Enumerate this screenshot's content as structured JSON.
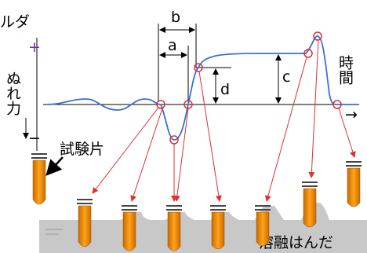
{
  "header": {
    "title": "ルダ"
  },
  "labels": {
    "a": "a",
    "b": "b",
    "c": "c",
    "d": "d"
  },
  "y_axis": {
    "label": "ぬれ力",
    "plus": "+",
    "minus": "−"
  },
  "x_axis": {
    "label": "時間",
    "arrow": "→"
  },
  "specimen": "試験片",
  "solder": "溶融はんだ"
}
